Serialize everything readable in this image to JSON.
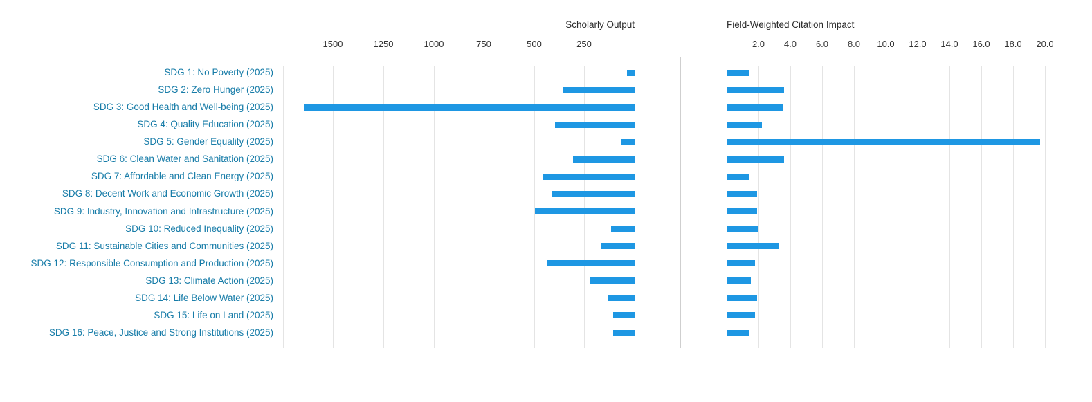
{
  "page": {
    "background": "#ffffff"
  },
  "colors": {
    "bar": "#1e97e3",
    "category_label": "#177ca8",
    "axis_text": "#333333",
    "title_text": "#2b2b2b",
    "gridline": "#e4e4e4",
    "separator": "#cfcfcf"
  },
  "categories": [
    "SDG 1: No Poverty (2025)",
    "SDG 2: Zero Hunger (2025)",
    "SDG 3: Good Health and Well-being (2025)",
    "SDG 4: Quality Education (2025)",
    "SDG 5: Gender Equality (2025)",
    "SDG 6: Clean Water and Sanitation (2025)",
    "SDG 7: Affordable and Clean Energy (2025)",
    "SDG 8: Decent Work and Economic Growth (2025)",
    "SDG 9: Industry, Innovation and Infrastructure (2025)",
    "SDG 10: Reduced Inequality (2025)",
    "SDG 11: Sustainable Cities and Communities (2025)",
    "SDG 12: Responsible Consumption and Production (2025)",
    "SDG 13: Climate Action (2025)",
    "SDG 14: Life Below Water (2025)",
    "SDG 15: Life on Land (2025)",
    "SDG 16: Peace, Justice and Strong Institutions (2025)"
  ],
  "chart_data": [
    {
      "type": "bar",
      "orientation": "horizontal",
      "title": "Scholarly Output",
      "values": [
        38,
        356,
        1645,
        397,
        64,
        305,
        458,
        409,
        497,
        117,
        170,
        435,
        219,
        130,
        108,
        107
      ],
      "axis": {
        "position": "top",
        "reversed": true,
        "range": [
          1750,
          0
        ],
        "tick_labels": [
          "1500",
          "1250",
          "1000",
          "750",
          "500",
          "250"
        ],
        "tick_values": [
          1500,
          1250,
          1000,
          750,
          500,
          250
        ],
        "grid": true
      },
      "legend": "none"
    },
    {
      "type": "bar",
      "orientation": "horizontal",
      "title": "Field-Weighted Citation Impact",
      "values": [
        1.4,
        3.6,
        3.5,
        2.2,
        19.7,
        3.6,
        1.4,
        1.9,
        1.9,
        2.0,
        3.3,
        1.8,
        1.5,
        1.9,
        1.8,
        1.4
      ],
      "axis": {
        "position": "top",
        "reversed": false,
        "range": [
          0,
          20.4
        ],
        "tick_labels": [
          "2.0",
          "4.0",
          "6.0",
          "8.0",
          "10.0",
          "12.0",
          "14.0",
          "16.0",
          "18.0",
          "20.0"
        ],
        "tick_values": [
          2,
          4,
          6,
          8,
          10,
          12,
          14,
          16,
          18,
          20
        ],
        "grid": true
      },
      "legend": "none"
    }
  ]
}
